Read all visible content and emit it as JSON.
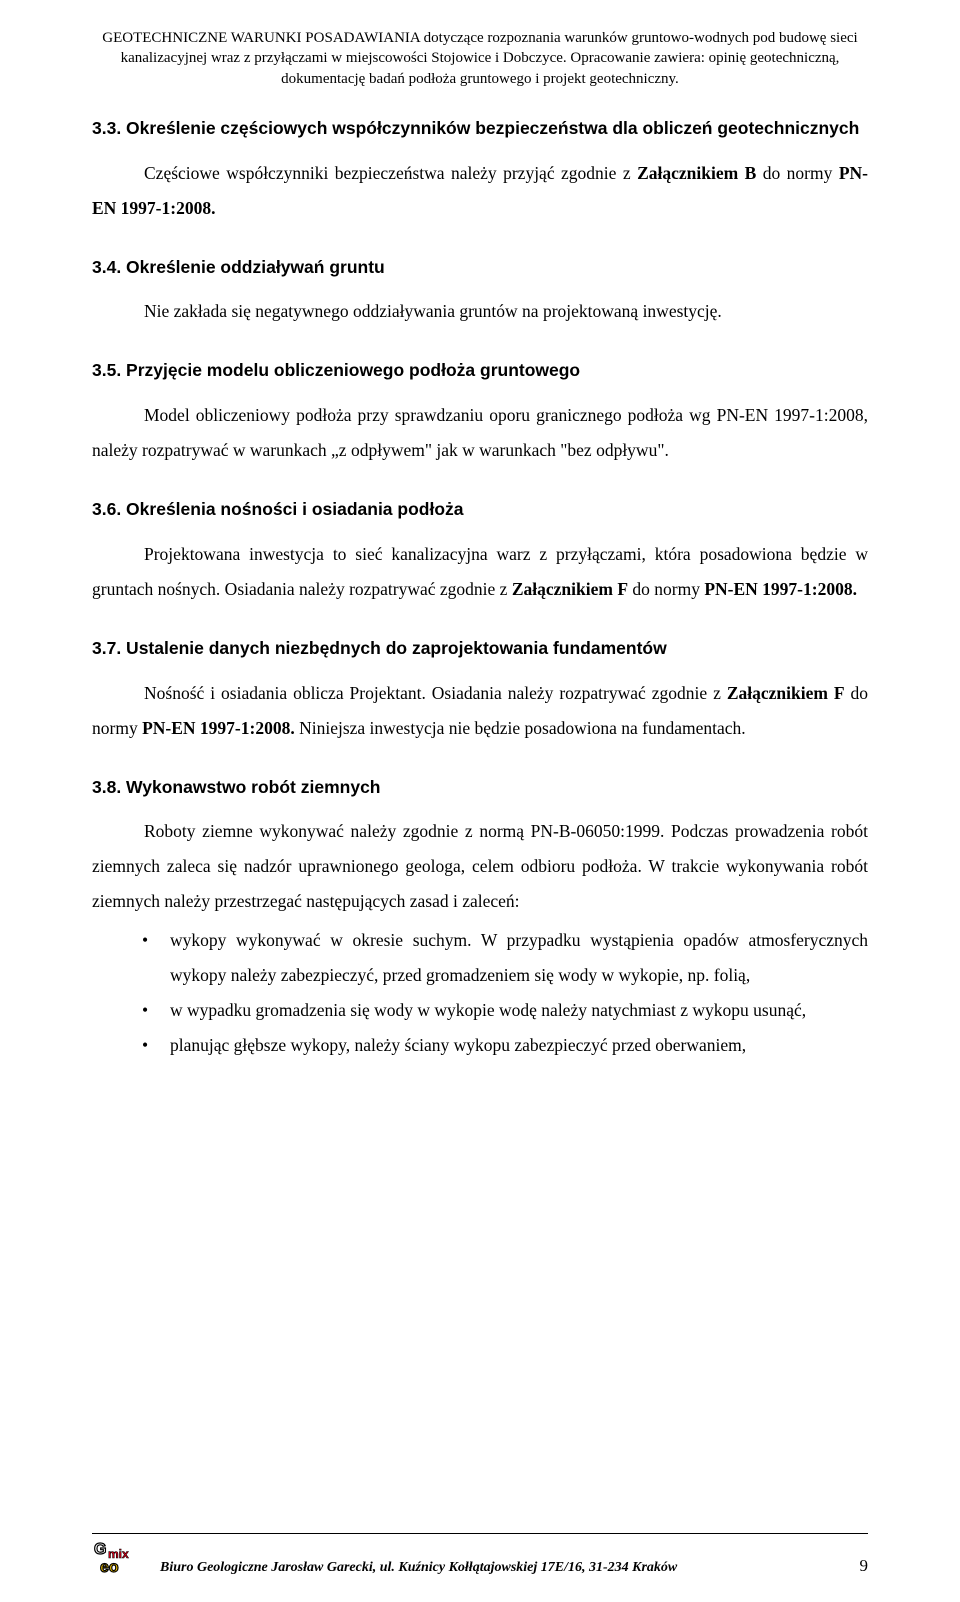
{
  "header": {
    "line1": "GEOTECHNICZNE WARUNKI POSADAWIANIA dotyczące rozpoznania warunków gruntowo-wodnych pod budowę sieci",
    "line2": "kanalizacyjnej wraz z przyłączami w miejscowości Stojowice i Dobczyce. Opracowanie zawiera: opinię geotechniczną,",
    "line3": "dokumentację badań podłoża gruntowego i projekt geotechniczny."
  },
  "sections": {
    "s33": {
      "title": "3.3. Określenie częściowych współczynników bezpieczeństwa dla obliczeń geotechnicznych",
      "body": "Częściowe współczynniki bezpieczeństwa należy przyjąć zgodnie z <b>Załącznikiem B</b> do normy <b>PN-EN 1997-1:2008.</b>"
    },
    "s34": {
      "title": "3.4. Określenie oddziaływań gruntu",
      "body": "Nie zakłada się negatywnego oddziaływania gruntów na projektowaną inwestycję."
    },
    "s35": {
      "title": "3.5. Przyjęcie modelu obliczeniowego podłoża gruntowego",
      "body": "Model obliczeniowy podłoża przy sprawdzaniu oporu granicznego podłoża wg PN-EN 1997-1:2008, należy rozpatrywać w warunkach „z odpływem\" jak w warunkach \"bez odpływu\"."
    },
    "s36": {
      "title": "3.6. Określenia nośności i osiadania podłoża",
      "body": "Projektowana inwestycja to sieć kanalizacyjna warz z przyłączami, która posadowiona będzie w gruntach nośnych. Osiadania należy rozpatrywać zgodnie z <b>Załącznikiem F</b> do normy <b>PN-EN 1997-1:2008.</b>"
    },
    "s37": {
      "title": "3.7. Ustalenie danych niezbędnych do zaprojektowania fundamentów",
      "body": "Nośność i osiadania oblicza Projektant. Osiadania należy rozpatrywać zgodnie z <b>Załącznikiem F</b> do normy <b>PN-EN 1997-1:2008.</b> Niniejsza inwestycja nie będzie posadowiona na fundamentach."
    },
    "s38": {
      "title": "3.8. Wykonawstwo robót ziemnych",
      "body": "Roboty ziemne wykonywać należy zgodnie z normą PN-B-06050:1999. Podczas prowadzenia robót ziemnych zaleca się nadzór uprawnionego geologa, celem odbioru podłoża.  W trakcie wykonywania robót ziemnych należy przestrzegać następujących zasad i zaleceń:",
      "bullets": [
        "wykopy wykonywać w okresie suchym. W przypadku wystąpienia opadów atmosferycznych wykopy należy zabezpieczyć, przed gromadzeniem się wody w wykopie, np. folią,",
        "w wypadku gromadzenia się wody w wykopie wodę należy natychmiast z wykopu usunąć,",
        "planując głębsze wykopy, należy ściany wykopu zabezpieczyć przed oberwaniem,"
      ]
    }
  },
  "footer": {
    "text": "Biuro Geologiczne Jarosław Garecki, ul. Kuźnicy Kołłątajowskiej 17E/16, 31-234 Kraków",
    "page": "9",
    "logo_colors": {
      "g": "#ffffff",
      "mix": "#e2001a",
      "eo": "#ffcc00",
      "outline": "#000000"
    }
  }
}
